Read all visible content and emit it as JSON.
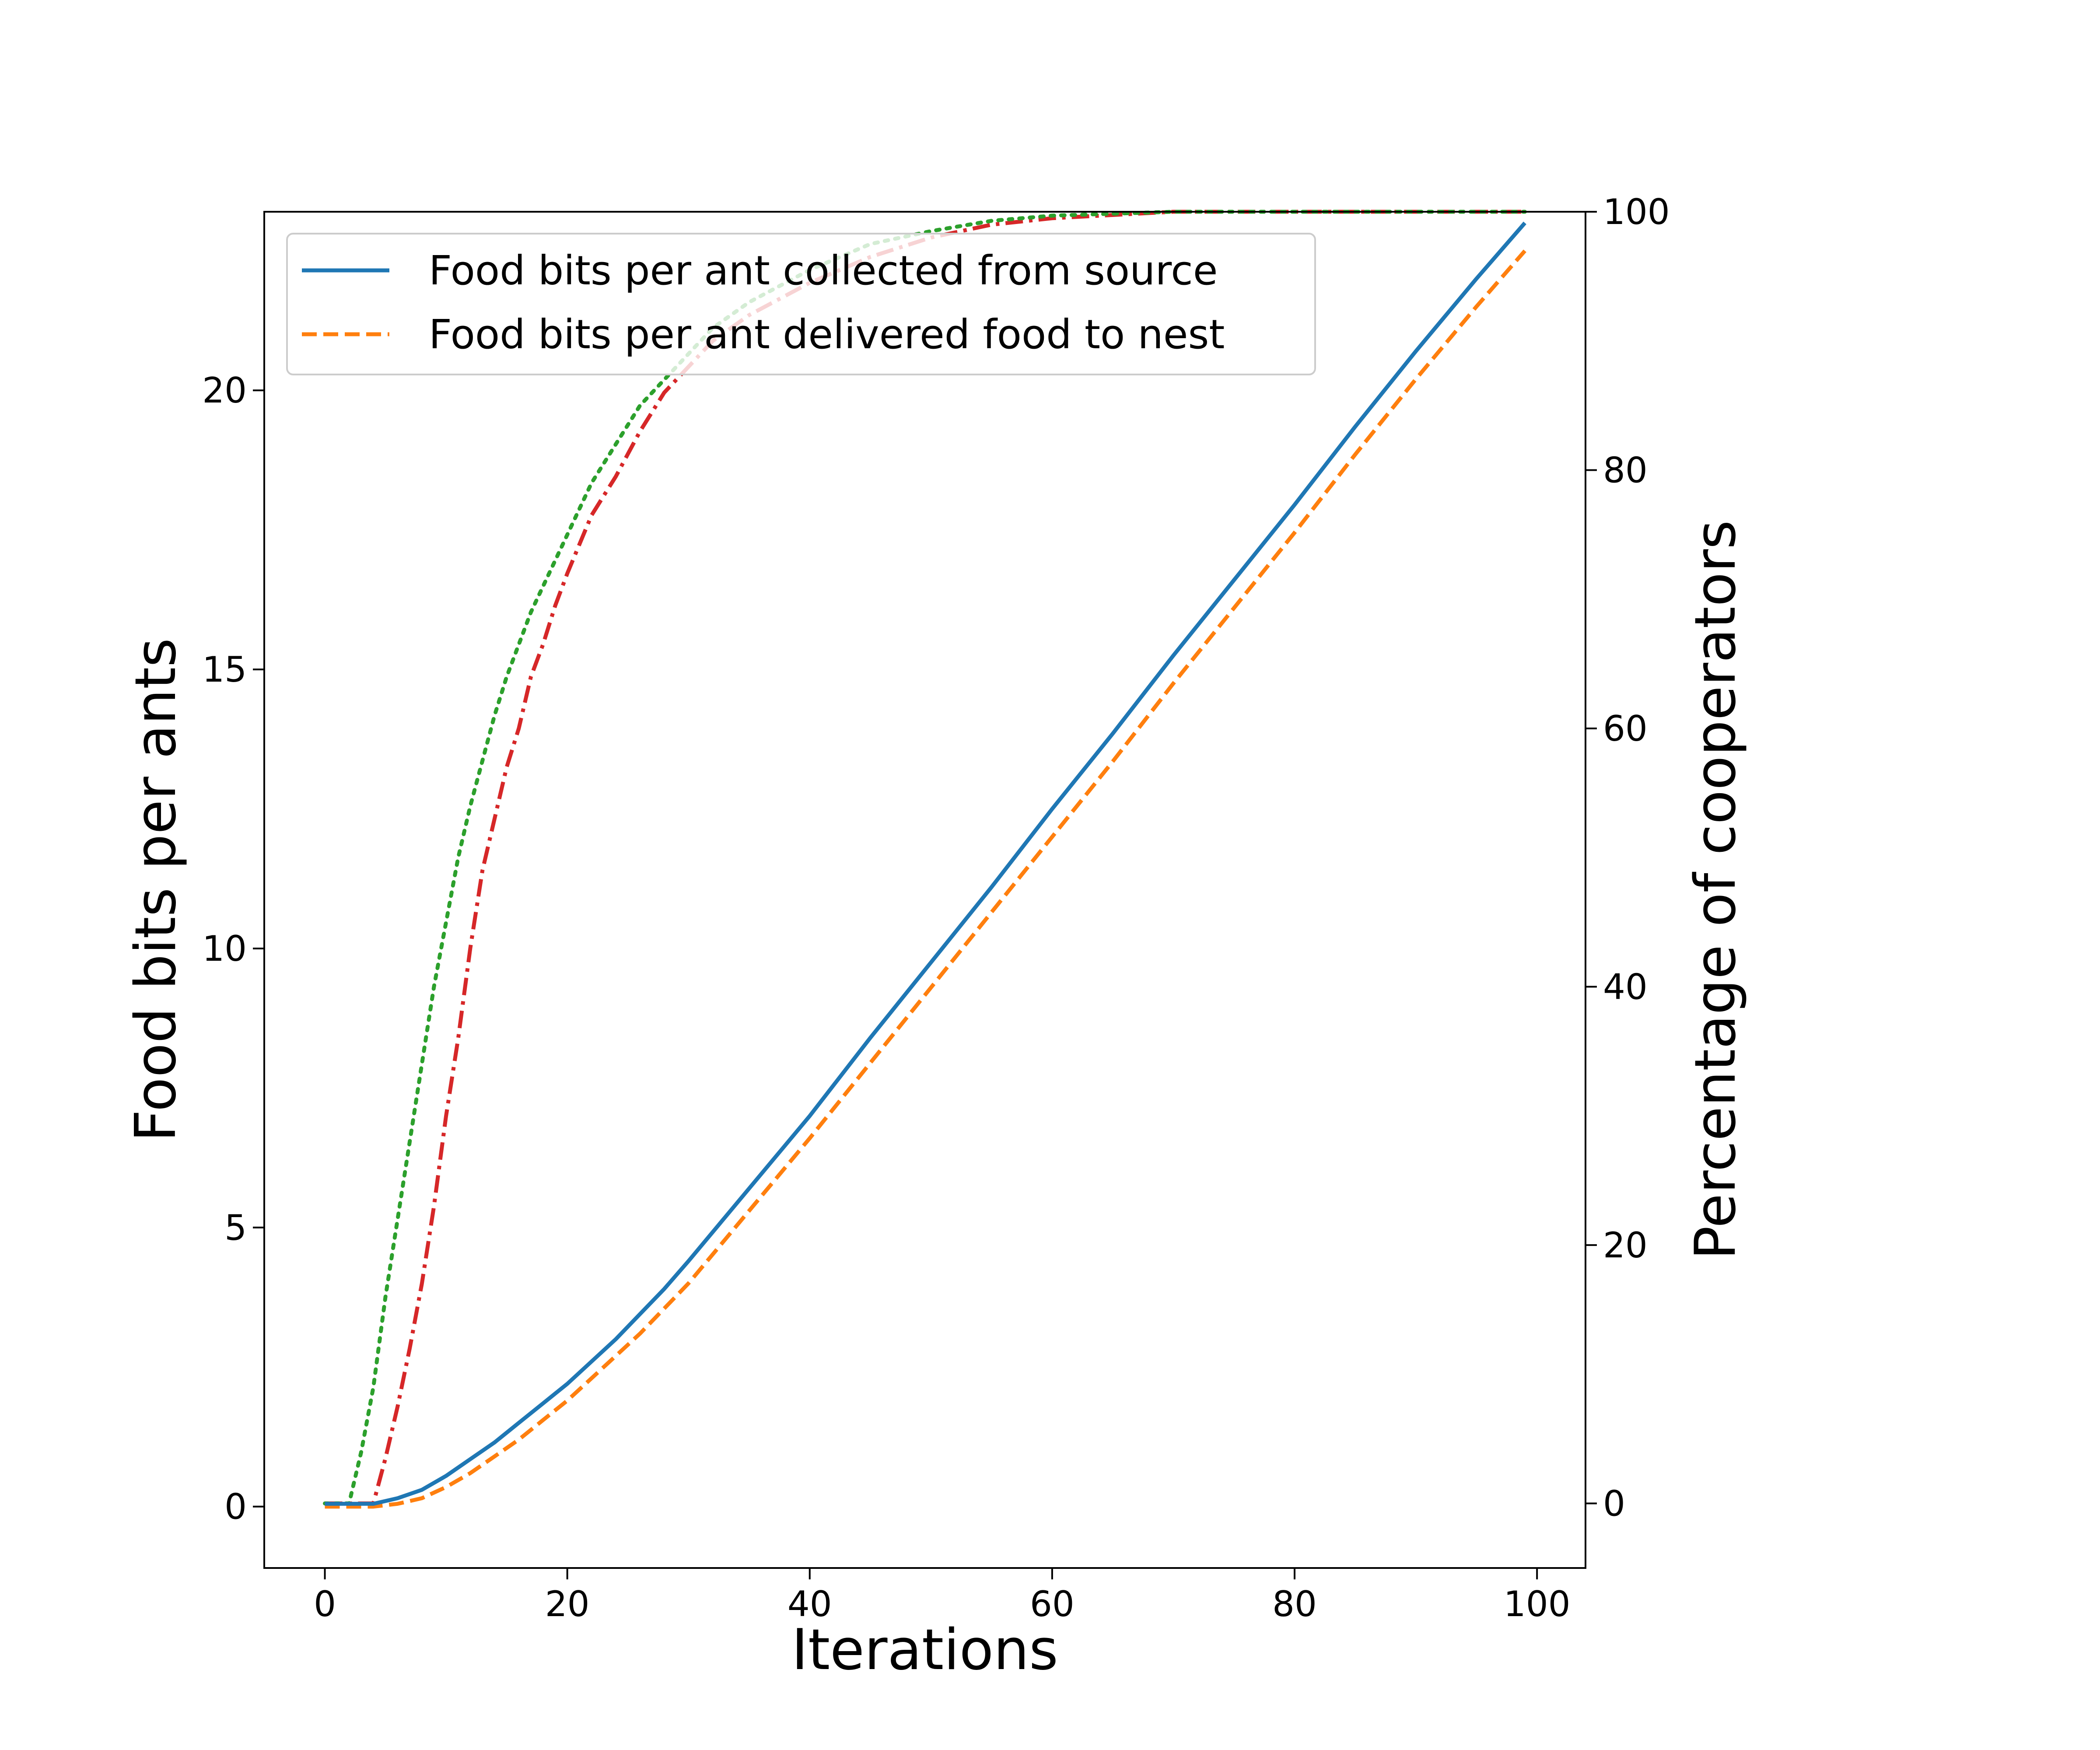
{
  "chart_data": {
    "type": "line",
    "xlabel": "Iterations",
    "ylabel": "Food bits per ants",
    "y2label": "Percentage of cooperators",
    "xlim": [
      -5,
      104
    ],
    "ylim": [
      -1.1,
      23.2
    ],
    "y2lim": [
      -5,
      100
    ],
    "xticks": [
      0,
      20,
      40,
      60,
      80,
      100
    ],
    "yticks": [
      0,
      5,
      10,
      15,
      20
    ],
    "y2ticks": [
      0,
      20,
      40,
      60,
      80,
      100
    ],
    "legend_position": "upper-left",
    "grid": false,
    "series": [
      {
        "name": "Food bits per ant collected from source",
        "axis": "left",
        "color": "#1f77b4",
        "style": "solid",
        "in_legend": true,
        "x": [
          0,
          2,
          4,
          6,
          8,
          10,
          12,
          14,
          16,
          18,
          20,
          22,
          24,
          26,
          28,
          30,
          35,
          40,
          45,
          50,
          55,
          60,
          65,
          70,
          75,
          80,
          85,
          90,
          95,
          99
        ],
        "y": [
          0.05,
          0.05,
          0.05,
          0.15,
          0.3,
          0.55,
          0.85,
          1.15,
          1.5,
          1.85,
          2.2,
          2.6,
          3.0,
          3.45,
          3.9,
          4.4,
          5.7,
          7.0,
          8.4,
          9.75,
          11.1,
          12.5,
          13.85,
          15.25,
          16.6,
          17.95,
          19.35,
          20.7,
          22.0,
          23.0
        ]
      },
      {
        "name": "Food bits per ant delivered food to nest",
        "axis": "left",
        "color": "#ff7f0e",
        "style": "dashed",
        "in_legend": true,
        "x": [
          0,
          2,
          4,
          6,
          8,
          10,
          12,
          14,
          16,
          18,
          20,
          22,
          24,
          26,
          28,
          30,
          35,
          40,
          45,
          50,
          55,
          60,
          65,
          70,
          75,
          80,
          85,
          90,
          95,
          99
        ],
        "y": [
          0.0,
          0.0,
          0.0,
          0.05,
          0.15,
          0.35,
          0.6,
          0.9,
          1.2,
          1.55,
          1.9,
          2.3,
          2.7,
          3.1,
          3.55,
          4.0,
          5.3,
          6.6,
          7.95,
          9.3,
          10.65,
          12.0,
          13.35,
          14.75,
          16.1,
          17.45,
          18.85,
          20.2,
          21.5,
          22.5
        ]
      },
      {
        "name": "",
        "axis": "right",
        "color": "#d62728",
        "style": "dashdot",
        "in_legend": false,
        "x": [
          0,
          2,
          4,
          5,
          6,
          7,
          8,
          9,
          10,
          11,
          12,
          13,
          14,
          15,
          16,
          17,
          18,
          19,
          20,
          22,
          24,
          26,
          28,
          30,
          32,
          35,
          40,
          45,
          50,
          55,
          60,
          70,
          80,
          90,
          99
        ],
        "y": [
          0,
          0,
          0,
          3.5,
          7.5,
          12,
          17,
          23,
          30,
          36,
          43,
          49,
          53,
          57,
          60,
          64,
          66.5,
          69.5,
          72,
          76.5,
          79.5,
          83,
          86,
          88,
          90,
          92,
          94.5,
          96.5,
          98,
          99,
          99.5,
          100,
          100,
          100,
          100
        ]
      },
      {
        "name": "",
        "axis": "right",
        "color": "#2ca02c",
        "style": "dotted",
        "in_legend": false,
        "x": [
          0,
          1,
          2,
          3,
          4,
          5,
          6,
          7,
          8,
          9,
          10,
          11,
          12,
          13,
          14,
          15,
          16,
          17,
          18,
          19,
          20,
          22,
          24,
          26,
          28,
          30,
          32,
          35,
          40,
          45,
          50,
          55,
          60,
          70,
          80,
          90,
          99
        ],
        "y": [
          0,
          0,
          0,
          4,
          9,
          16,
          22,
          28,
          34,
          40,
          45,
          50,
          54,
          57.5,
          61,
          64,
          66.5,
          69,
          71,
          73,
          75,
          79,
          82,
          85,
          87,
          89,
          91,
          93,
          95.5,
          97.5,
          98.5,
          99.3,
          99.7,
          100,
          100,
          100,
          100
        ]
      }
    ]
  }
}
